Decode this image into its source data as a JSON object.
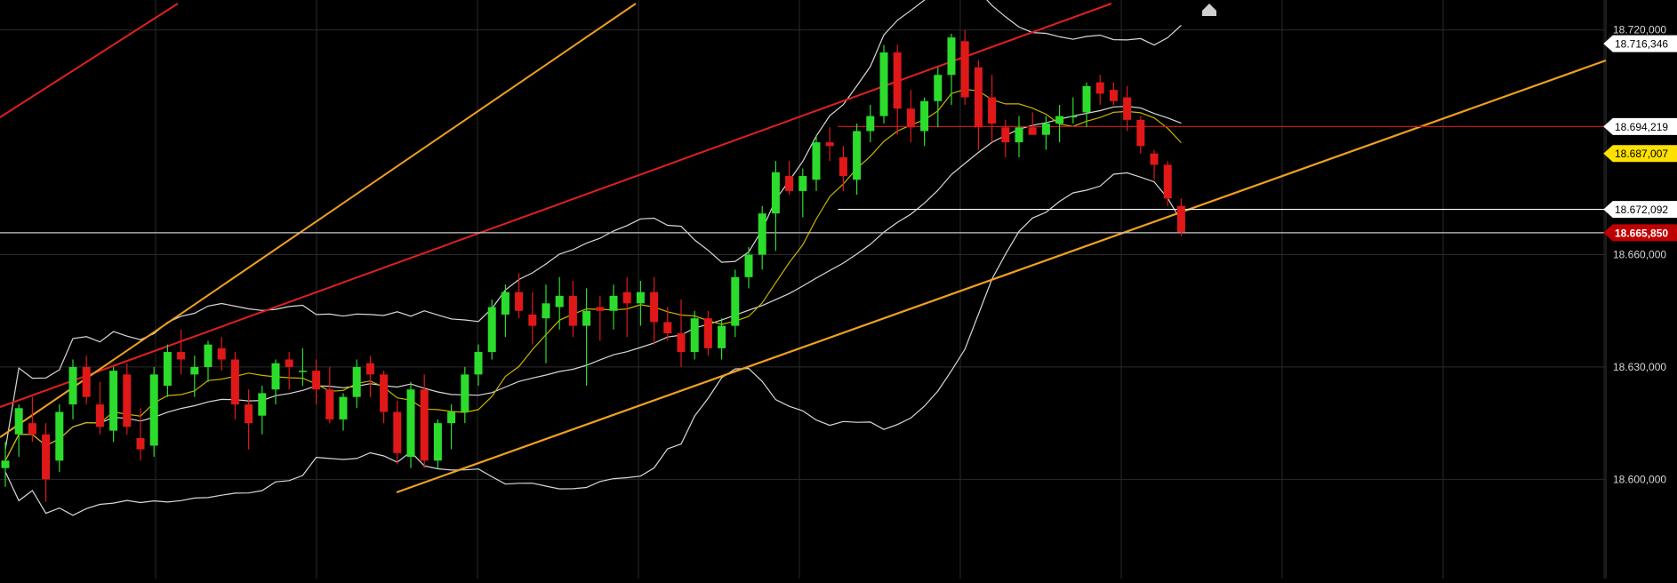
{
  "chart_data": {
    "type": "candlestick",
    "title": "",
    "xlabel": "",
    "ylabel": "",
    "ylim": [
      18573500,
      18728000
    ],
    "grid": true,
    "colors": {
      "background": "#000000",
      "grid": "#2a2a2a",
      "up_candle": "#2cdc2c",
      "down_candle": "#e01818",
      "bollinger": "#d8d8d8",
      "moving_average": "#c8b400",
      "red_channel": "#e02020",
      "orange_trendline": "#f0a020",
      "price_tag": "#c00000",
      "level_tag_yellow": "#ffe000"
    },
    "y_tick_labels": [
      {
        "value": 18720000,
        "label": "18.720,000"
      },
      {
        "value": 18660000,
        "label": "18.660,000"
      },
      {
        "value": 18630000,
        "label": "18.630,000"
      },
      {
        "value": 18600000,
        "label": "18.600,000"
      }
    ],
    "level_tags": [
      {
        "value": 18716346,
        "label": "18.716,346",
        "style": "white"
      },
      {
        "value": 18694219,
        "label": "18.694,219",
        "style": "white"
      },
      {
        "value": 18687007,
        "label": "18.687,007",
        "style": "yellow"
      },
      {
        "value": 18672092,
        "label": "18.672,092",
        "style": "white"
      },
      {
        "value": 18665850,
        "label": "18.665,850",
        "style": "red"
      }
    ],
    "horizontal_lines": [
      {
        "value": 18694219,
        "color": "#c01818",
        "from_candle": 62
      },
      {
        "value": 18672092,
        "color": "#ffffff",
        "from_candle": 62
      },
      {
        "value": 18665850,
        "color": "#c8c8c8",
        "from_candle": 0
      }
    ],
    "candles": [
      [
        18603000,
        18610000,
        18598000,
        18605000
      ],
      [
        18612000,
        18620000,
        18606000,
        18619000
      ],
      [
        18615000,
        18622000,
        18610000,
        18612000
      ],
      [
        18612000,
        18615000,
        18594000,
        18600000
      ],
      [
        18605000,
        18620000,
        18602000,
        18618000
      ],
      [
        18620000,
        18632000,
        18616000,
        18630000
      ],
      [
        18630000,
        18633000,
        18620000,
        18622000
      ],
      [
        18620000,
        18626000,
        18612000,
        18614000
      ],
      [
        18613000,
        18630000,
        18610000,
        18629000
      ],
      [
        18628000,
        18631000,
        18612000,
        18614000
      ],
      [
        18611000,
        18619000,
        18605000,
        18608000
      ],
      [
        18609000,
        18630000,
        18606000,
        18628000
      ],
      [
        18625000,
        18636000,
        18622000,
        18634000
      ],
      [
        18634000,
        18640000,
        18628000,
        18632000
      ],
      [
        18628000,
        18633000,
        18622000,
        18630000
      ],
      [
        18630000,
        18637000,
        18626000,
        18636000
      ],
      [
        18635000,
        18638000,
        18629000,
        18632000
      ],
      [
        18632000,
        18634000,
        18616000,
        18620000
      ],
      [
        18620000,
        18624000,
        18608000,
        18615000
      ],
      [
        18617000,
        18625000,
        18612000,
        18623000
      ],
      [
        18624000,
        18632000,
        18620000,
        18631000
      ],
      [
        18632000,
        18634000,
        18624000,
        18630000
      ],
      [
        18629000,
        18635000,
        18625000,
        18629000
      ],
      [
        18629000,
        18632000,
        18620000,
        18624000
      ],
      [
        18624000,
        18630000,
        18615000,
        18616000
      ],
      [
        18616000,
        18623000,
        18613000,
        18622000
      ],
      [
        18622000,
        18632000,
        18619000,
        18630000
      ],
      [
        18631000,
        18633000,
        18622000,
        18628000
      ],
      [
        18628000,
        18629000,
        18615000,
        18618000
      ],
      [
        18618000,
        18621000,
        18604000,
        18607000
      ],
      [
        18606000,
        18626000,
        18603000,
        18624000
      ],
      [
        18624000,
        18628000,
        18603000,
        18605000
      ],
      [
        18605000,
        18616000,
        18603000,
        18615000
      ],
      [
        18615000,
        18620000,
        18608000,
        18618000
      ],
      [
        18618000,
        18630000,
        18615000,
        18628000
      ],
      [
        18628000,
        18636000,
        18625000,
        18634000
      ],
      [
        18634000,
        18648000,
        18632000,
        18646000
      ],
      [
        18644000,
        18652000,
        18638000,
        18650000
      ],
      [
        18650000,
        18655000,
        18643000,
        18645000
      ],
      [
        18644000,
        18650000,
        18636000,
        18641000
      ],
      [
        18643000,
        18652000,
        18631000,
        18647000
      ],
      [
        18646000,
        18654000,
        18640000,
        18649000
      ],
      [
        18649000,
        18653000,
        18638000,
        18641000
      ],
      [
        18641000,
        18651000,
        18625000,
        18645000
      ],
      [
        18646000,
        18649000,
        18637000,
        18645000
      ],
      [
        18645000,
        18652000,
        18640000,
        18649000
      ],
      [
        18650000,
        18654000,
        18638000,
        18647000
      ],
      [
        18647000,
        18653000,
        18641000,
        18650000
      ],
      [
        18650000,
        18654000,
        18636000,
        18642000
      ],
      [
        18642000,
        18646000,
        18637000,
        18639000
      ],
      [
        18639000,
        18648000,
        18630000,
        18634000
      ],
      [
        18634000,
        18645000,
        18632000,
        18643000
      ],
      [
        18643000,
        18645000,
        18633000,
        18635000
      ],
      [
        18635000,
        18643000,
        18632000,
        18641000
      ],
      [
        18641000,
        18656000,
        18638000,
        18654000
      ],
      [
        18654000,
        18662000,
        18651000,
        18660000
      ],
      [
        18660000,
        18673000,
        18656000,
        18671000
      ],
      [
        18671000,
        18685000,
        18661000,
        18682000
      ],
      [
        18681000,
        18685000,
        18676000,
        18677000
      ],
      [
        18677000,
        18683000,
        18670000,
        18681000
      ],
      [
        18680000,
        18692000,
        18677000,
        18690000
      ],
      [
        18690000,
        18694000,
        18685000,
        18689000
      ],
      [
        18686000,
        18689000,
        18677000,
        18681000
      ],
      [
        18680000,
        18695000,
        18676000,
        18693000
      ],
      [
        18693000,
        18700000,
        18690000,
        18697000
      ],
      [
        18697000,
        18716000,
        18695000,
        18714000
      ],
      [
        18714000,
        18716000,
        18692000,
        18699000
      ],
      [
        18699000,
        18704000,
        18690000,
        18694000
      ],
      [
        18693000,
        18702000,
        18689000,
        18701000
      ],
      [
        18701000,
        18710000,
        18694000,
        18708000
      ],
      [
        18708000,
        18719000,
        18700000,
        18718000
      ],
      [
        18717000,
        18720000,
        18700000,
        18702000
      ],
      [
        18710000,
        18712000,
        18688000,
        18694000
      ],
      [
        18702000,
        18708000,
        18690000,
        18695000
      ],
      [
        18694000,
        18696000,
        18686000,
        18690000
      ],
      [
        18690000,
        18697000,
        18686000,
        18694000
      ],
      [
        18694000,
        18698000,
        18692000,
        18692000
      ],
      [
        18692000,
        18697000,
        18688000,
        18695000
      ],
      [
        18695000,
        18700000,
        18690000,
        18697000
      ],
      [
        18697000,
        18702000,
        18695000,
        18697000
      ],
      [
        18698000,
        18706000,
        18694000,
        18705000
      ],
      [
        18706000,
        18708000,
        18700000,
        18703000
      ],
      [
        18704000,
        18706000,
        18700000,
        18701000
      ],
      [
        18702000,
        18705000,
        18693000,
        18696000
      ],
      [
        18696000,
        18697000,
        18687000,
        18689000
      ],
      [
        18687000,
        18688000,
        18680000,
        18684000
      ],
      [
        18684000,
        18685000,
        18673000,
        18675000
      ],
      [
        18673000,
        18675000,
        18665000,
        18666000
      ]
    ]
  }
}
